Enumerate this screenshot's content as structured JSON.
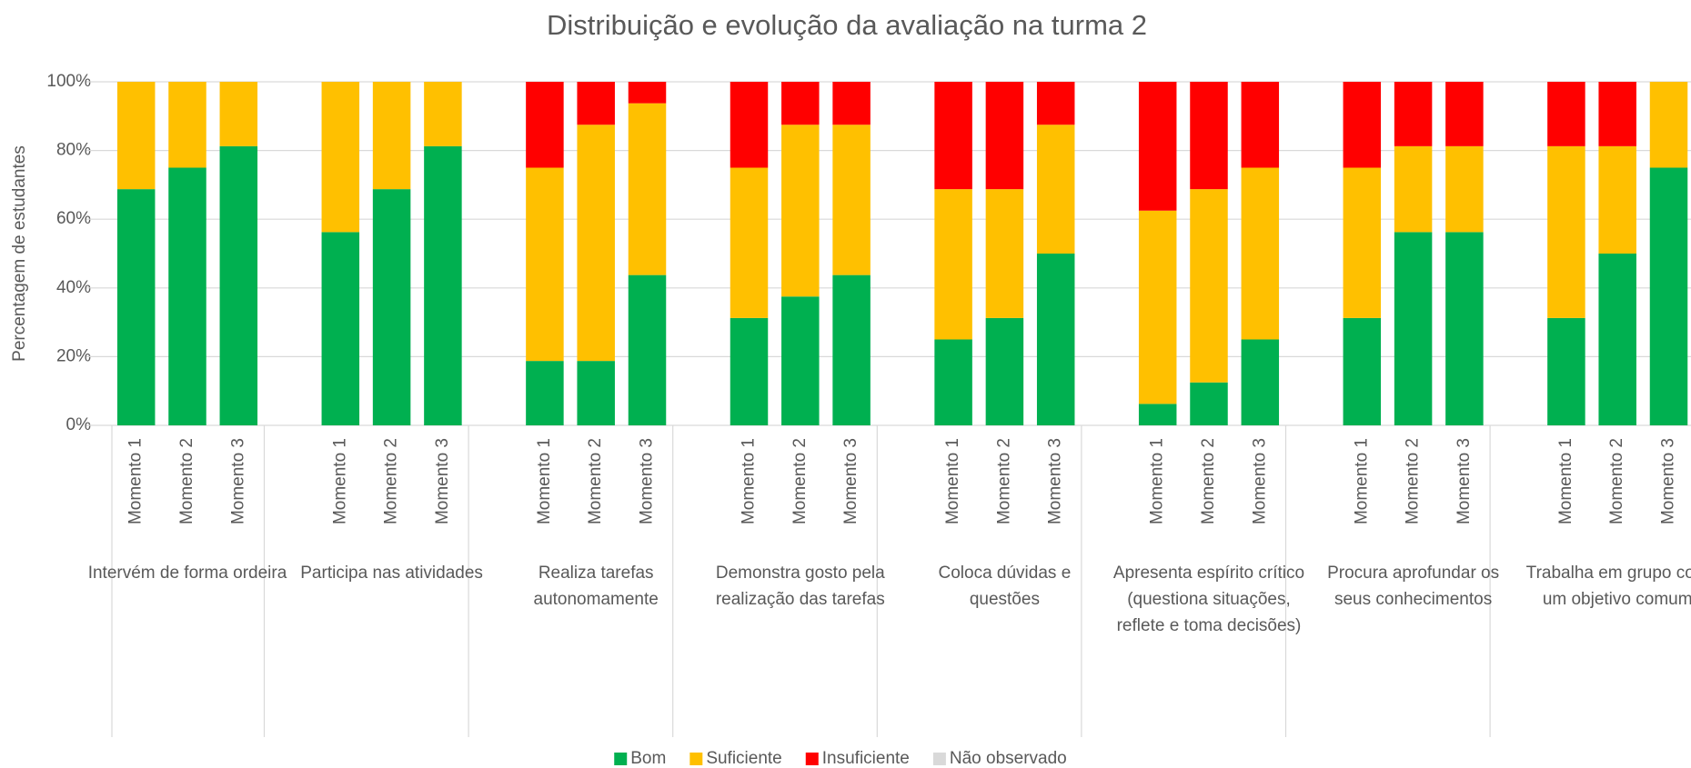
{
  "chart_data": {
    "type": "stacked-bar",
    "title": "Distribuição e evolução da avaliação na turma 2",
    "y_label": "Percentagem de estudantes",
    "groups": [
      {
        "label": "Intervém de forma ordeira",
        "categories": [
          "Momento 1",
          "Momento 2",
          "Momento 3"
        ]
      },
      {
        "label": "Participa nas atividades",
        "categories": [
          "Momento 1",
          "Momento 2",
          "Momento 3"
        ]
      },
      {
        "label": "Realiza tarefas autonomamente",
        "categories": [
          "Momento 1",
          "Momento 2",
          "Momento 3"
        ]
      },
      {
        "label": "Demonstra gosto pela realização das tarefas",
        "categories": [
          "Momento 1",
          "Momento 2",
          "Momento 3"
        ]
      },
      {
        "label": "Coloca dúvidas e questões",
        "categories": [
          "Momento 1",
          "Momento 2",
          "Momento 3"
        ]
      },
      {
        "label": "Apresenta espírito crítico (questiona situações, reflete e toma decisões)",
        "categories": [
          "Momento 1",
          "Momento 2",
          "Momento 3"
        ]
      },
      {
        "label": "Procura aprofundar os seus conhecimentos",
        "categories": [
          "Momento 1",
          "Momento 2",
          "Momento 3"
        ]
      },
      {
        "label": "Trabalha em grupo com um objetivo comum",
        "categories": [
          "Momento 1",
          "Momento 2",
          "Momento 3"
        ]
      }
    ],
    "series": [
      {
        "name": "Bom",
        "color": "#00b050",
        "values": [
          68.75,
          75,
          81.25,
          56.25,
          68.75,
          81.25,
          18.75,
          18.75,
          43.75,
          31.25,
          37.5,
          43.75,
          25,
          31.25,
          50,
          6.25,
          12.5,
          25,
          31.25,
          56.25,
          56.25,
          31.25,
          50,
          75
        ]
      },
      {
        "name": "Suficiente",
        "color": "#ffc000",
        "values": [
          31.25,
          25,
          18.75,
          43.75,
          31.25,
          18.75,
          56.25,
          68.75,
          50,
          43.75,
          50,
          43.75,
          43.75,
          37.5,
          37.5,
          56.25,
          56.25,
          50,
          43.75,
          25,
          25,
          50,
          31.25,
          25
        ]
      },
      {
        "name": "Insuficiente",
        "color": "#ff0000",
        "values": [
          0,
          0,
          0,
          0,
          0,
          0,
          25,
          12.5,
          6.25,
          25,
          12.5,
          12.5,
          31.25,
          31.25,
          12.5,
          37.5,
          31.25,
          25,
          25,
          18.75,
          18.75,
          18.75,
          18.75,
          0
        ]
      },
      {
        "name": "Não observado",
        "color": "#d9d9d9",
        "values": [
          0,
          0,
          0,
          0,
          0,
          0,
          0,
          0,
          0,
          0,
          0,
          0,
          0,
          0,
          0,
          0,
          0,
          0,
          0,
          0,
          0,
          0,
          0,
          0
        ]
      }
    ],
    "ylim": [
      0,
      100
    ],
    "yticks": [
      {
        "value": 0,
        "label": "0%"
      },
      {
        "value": 20,
        "label": "20%"
      },
      {
        "value": 40,
        "label": "40%"
      },
      {
        "value": 60,
        "label": "60%"
      },
      {
        "value": 80,
        "label": "80%"
      },
      {
        "value": 100,
        "label": "100%"
      }
    ],
    "grid": true,
    "legend": "bottom"
  }
}
